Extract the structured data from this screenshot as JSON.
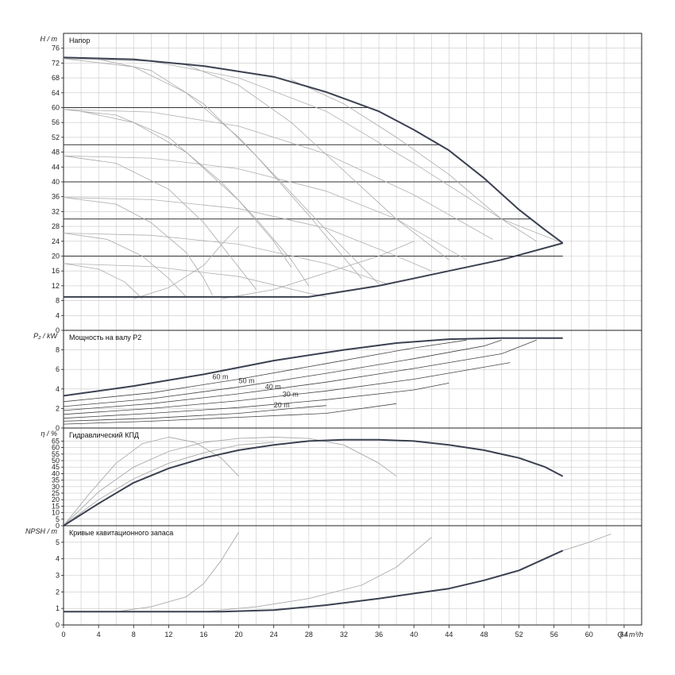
{
  "chart_data": [
    {
      "type": "line",
      "title": "Напор",
      "ylabel": "H / m",
      "xlim": [
        0,
        66
      ],
      "ylim": [
        0,
        80
      ],
      "yticks": [
        0,
        4,
        8,
        12,
        16,
        20,
        24,
        28,
        32,
        36,
        40,
        44,
        48,
        52,
        56,
        60,
        64,
        68,
        72,
        76
      ],
      "grid": true,
      "hlines": [
        60,
        50,
        40,
        30,
        20
      ],
      "envelope": {
        "upper": [
          [
            0,
            73.5
          ],
          [
            8,
            73
          ],
          [
            16,
            71.2
          ],
          [
            24,
            68.3
          ],
          [
            30,
            64.2
          ],
          [
            36,
            59
          ],
          [
            40,
            54
          ],
          [
            44,
            48.5
          ],
          [
            48,
            41
          ],
          [
            52,
            32.5
          ],
          [
            55,
            27
          ],
          [
            57,
            23.5
          ]
        ],
        "lower": [
          [
            0,
            9
          ],
          [
            28,
            9
          ],
          [
            36,
            12
          ],
          [
            44,
            16
          ],
          [
            50,
            19
          ],
          [
            57,
            23.5
          ]
        ]
      },
      "speed_curves": [
        [
          [
            0,
            73.2
          ],
          [
            10,
            72.5
          ],
          [
            20,
            68
          ],
          [
            30,
            59
          ],
          [
            40,
            45
          ],
          [
            50,
            30
          ],
          [
            57,
            23.5
          ]
        ],
        [
          [
            0,
            59.5
          ],
          [
            10,
            58.8
          ],
          [
            20,
            55
          ],
          [
            30,
            47.5
          ],
          [
            40,
            36.5
          ],
          [
            49,
            24.5
          ]
        ],
        [
          [
            0,
            47
          ],
          [
            10,
            46.4
          ],
          [
            20,
            43.5
          ],
          [
            30,
            37.5
          ],
          [
            38,
            30
          ],
          [
            46,
            19
          ]
        ],
        [
          [
            0,
            35.8
          ],
          [
            10,
            35.2
          ],
          [
            20,
            32.8
          ],
          [
            30,
            27.5
          ],
          [
            38,
            20
          ],
          [
            42,
            16
          ]
        ],
        [
          [
            0,
            26.2
          ],
          [
            10,
            25.6
          ],
          [
            20,
            23.2
          ],
          [
            30,
            18
          ],
          [
            37,
            12.5
          ]
        ],
        [
          [
            0,
            18
          ],
          [
            10,
            17.2
          ],
          [
            20,
            14.5
          ],
          [
            28,
            10
          ],
          [
            30,
            9
          ]
        ]
      ],
      "pump_curves": [
        [
          [
            0,
            73.2
          ],
          [
            8,
            71
          ],
          [
            14,
            64
          ],
          [
            20,
            52
          ],
          [
            26,
            37
          ],
          [
            32,
            22
          ],
          [
            36,
            12.5
          ]
        ],
        [
          [
            4,
            73
          ],
          [
            10,
            70
          ],
          [
            16,
            61
          ],
          [
            22,
            47
          ],
          [
            28,
            31
          ],
          [
            34,
            14
          ]
        ],
        [
          [
            14,
            71.5
          ],
          [
            20,
            66
          ],
          [
            26,
            56
          ],
          [
            32,
            43
          ],
          [
            38,
            30
          ],
          [
            44,
            19
          ]
        ],
        [
          [
            26,
            67.5
          ],
          [
            32,
            61
          ],
          [
            38,
            52
          ],
          [
            44,
            42
          ],
          [
            50,
            30
          ],
          [
            54,
            24
          ]
        ],
        [
          [
            0,
            59.5
          ],
          [
            6,
            58
          ],
          [
            12,
            52
          ],
          [
            18,
            40
          ],
          [
            22,
            30
          ],
          [
            26,
            19
          ],
          [
            28,
            12
          ]
        ],
        [
          [
            2,
            59
          ],
          [
            8,
            56
          ],
          [
            14,
            48
          ],
          [
            20,
            35
          ],
          [
            24,
            24
          ],
          [
            26,
            17
          ]
        ],
        [
          [
            0,
            47
          ],
          [
            6,
            45
          ],
          [
            12,
            38
          ],
          [
            16,
            29
          ],
          [
            20,
            17
          ],
          [
            22,
            11
          ]
        ],
        [
          [
            0,
            35.8
          ],
          [
            6,
            34
          ],
          [
            10,
            29
          ],
          [
            14,
            21
          ],
          [
            16,
            14
          ],
          [
            17,
            9.5
          ]
        ],
        [
          [
            0,
            26.2
          ],
          [
            5,
            24.5
          ],
          [
            9,
            20
          ],
          [
            12,
            14
          ],
          [
            14,
            9
          ]
        ],
        [
          [
            0,
            18
          ],
          [
            4,
            16.5
          ],
          [
            7,
            13
          ],
          [
            9,
            8.5
          ]
        ],
        [
          [
            8,
            8.5
          ],
          [
            12,
            11.5
          ],
          [
            16,
            17.5
          ],
          [
            18,
            23
          ],
          [
            20,
            28
          ]
        ],
        [
          [
            18,
            8.5
          ],
          [
            24,
            11
          ],
          [
            30,
            15.5
          ],
          [
            36,
            20
          ],
          [
            40,
            24
          ]
        ]
      ]
    },
    {
      "type": "line",
      "title": "Мощность на валу P2",
      "ylabel": "P₂ / kW",
      "xlim": [
        0,
        66
      ],
      "ylim": [
        0,
        10
      ],
      "yticks": [
        0,
        2,
        4,
        6,
        8
      ],
      "grid": true,
      "envelope": [
        [
          0,
          3.3
        ],
        [
          8,
          4.3
        ],
        [
          16,
          5.5
        ],
        [
          24,
          6.9
        ],
        [
          32,
          8.0
        ],
        [
          38,
          8.7
        ],
        [
          44,
          9.1
        ],
        [
          50,
          9.2
        ],
        [
          57,
          9.2
        ]
      ],
      "series": [
        [
          [
            0,
            2.7
          ],
          [
            10,
            3.6
          ],
          [
            20,
            5.0
          ],
          [
            30,
            6.6
          ],
          [
            40,
            8.2
          ],
          [
            46,
            9.0
          ]
        ],
        [
          [
            0,
            2.2
          ],
          [
            10,
            3.0
          ],
          [
            20,
            4.2
          ],
          [
            30,
            5.6
          ],
          [
            40,
            7.1
          ],
          [
            48,
            8.4
          ],
          [
            50,
            9.0
          ]
        ],
        [
          [
            0,
            1.8
          ],
          [
            10,
            2.5
          ],
          [
            20,
            3.5
          ],
          [
            30,
            4.7
          ],
          [
            40,
            6.1
          ],
          [
            50,
            7.6
          ],
          [
            54,
            9.0
          ]
        ],
        [
          [
            0,
            1.4
          ],
          [
            10,
            2.0
          ],
          [
            20,
            2.8
          ],
          [
            30,
            3.8
          ],
          [
            40,
            5.0
          ],
          [
            51,
            6.7
          ]
        ],
        [
          [
            0,
            1.0
          ],
          [
            10,
            1.5
          ],
          [
            20,
            2.1
          ],
          [
            30,
            2.9
          ],
          [
            40,
            3.9
          ],
          [
            44,
            4.6
          ]
        ],
        [
          [
            0,
            0.7
          ],
          [
            10,
            1.0
          ],
          [
            20,
            1.5
          ],
          [
            26,
            2.0
          ],
          [
            30,
            2.3
          ]
        ],
        [
          [
            0,
            0.4
          ],
          [
            10,
            0.7
          ],
          [
            20,
            1.1
          ],
          [
            30,
            1.5
          ],
          [
            38,
            2.5
          ]
        ]
      ],
      "labels": [
        {
          "text": "60 m",
          "x": 17,
          "y": 5.0
        },
        {
          "text": "50 m",
          "x": 20,
          "y": 4.6
        },
        {
          "text": "40 m",
          "x": 23,
          "y": 4.0
        },
        {
          "text": "30 m",
          "x": 25,
          "y": 3.2
        },
        {
          "text": "20 m",
          "x": 24,
          "y": 2.1
        }
      ]
    },
    {
      "type": "line",
      "title": "Гидравлический КПД",
      "ylabel": "η / %",
      "xlim": [
        0,
        66
      ],
      "ylim": [
        0,
        75
      ],
      "yticks": [
        0,
        5,
        10,
        15,
        20,
        25,
        30,
        35,
        40,
        45,
        50,
        55,
        60,
        65
      ],
      "grid": true,
      "main": [
        [
          0,
          0
        ],
        [
          4,
          17
        ],
        [
          8,
          33
        ],
        [
          12,
          44
        ],
        [
          16,
          52
        ],
        [
          20,
          58
        ],
        [
          24,
          62
        ],
        [
          28,
          65
        ],
        [
          32,
          66
        ],
        [
          36,
          66
        ],
        [
          40,
          65
        ],
        [
          44,
          62
        ],
        [
          48,
          58
        ],
        [
          52,
          52
        ],
        [
          55,
          45
        ],
        [
          57,
          38
        ]
      ],
      "series": [
        [
          [
            0,
            0
          ],
          [
            3,
            25
          ],
          [
            6,
            48
          ],
          [
            9,
            63
          ],
          [
            12,
            68
          ],
          [
            15,
            64
          ],
          [
            18,
            52
          ],
          [
            20,
            38
          ]
        ],
        [
          [
            0,
            0
          ],
          [
            4,
            26
          ],
          [
            8,
            45
          ],
          [
            12,
            57
          ],
          [
            16,
            64
          ],
          [
            20,
            67
          ],
          [
            24,
            68
          ],
          [
            28,
            67
          ],
          [
            32,
            62
          ],
          [
            36,
            48
          ],
          [
            38,
            38
          ]
        ],
        [
          [
            0,
            0
          ],
          [
            4,
            20
          ],
          [
            8,
            36
          ],
          [
            12,
            48
          ],
          [
            16,
            56
          ],
          [
            20,
            62
          ],
          [
            24,
            64
          ]
        ]
      ]
    },
    {
      "type": "line",
      "title": "Кривые кавитационного запаса",
      "ylabel": "NPSH / m",
      "xlabel": "Q / m³/h",
      "xlim": [
        0,
        66
      ],
      "ylim": [
        0,
        6
      ],
      "xticks": [
        0,
        4,
        8,
        12,
        16,
        20,
        24,
        28,
        32,
        36,
        40,
        44,
        48,
        52,
        56,
        60,
        64
      ],
      "yticks": [
        0,
        1,
        2,
        3,
        4,
        5
      ],
      "grid": true,
      "main": [
        [
          0,
          0.8
        ],
        [
          6,
          0.8
        ],
        [
          12,
          0.8
        ],
        [
          18,
          0.8
        ],
        [
          24,
          0.9
        ],
        [
          30,
          1.2
        ],
        [
          36,
          1.6
        ],
        [
          40,
          1.9
        ],
        [
          44,
          2.2
        ],
        [
          48,
          2.7
        ],
        [
          52,
          3.3
        ],
        [
          57,
          4.5
        ]
      ],
      "series": [
        [
          [
            6,
            0.8
          ],
          [
            10,
            1.1
          ],
          [
            14,
            1.7
          ],
          [
            16,
            2.5
          ],
          [
            18,
            3.9
          ],
          [
            20,
            5.6
          ]
        ],
        [
          [
            16,
            0.8
          ],
          [
            22,
            1.1
          ],
          [
            28,
            1.6
          ],
          [
            34,
            2.4
          ],
          [
            38,
            3.5
          ],
          [
            42,
            5.3
          ]
        ],
        [
          [
            57,
            4.5
          ],
          [
            60,
            5.0
          ],
          [
            62.5,
            5.5
          ]
        ]
      ]
    }
  ]
}
